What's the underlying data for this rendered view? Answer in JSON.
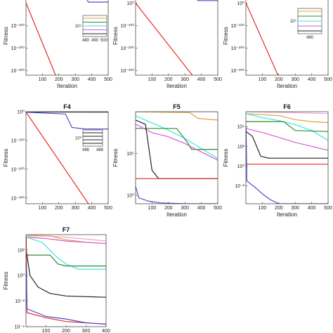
{
  "colors": {
    "red": "#e8282b",
    "blue": "#4b4fc4",
    "black": "#222222",
    "green": "#2e8b2e",
    "cyan": "#3ce6e6",
    "magenta": "#d65ad6",
    "orange": "#e0a040",
    "pink": "#e8a8d0"
  },
  "chart_data": [
    {
      "id": "top-left",
      "type": "line",
      "title": "",
      "xlabel": "Iteration",
      "ylabel": "Fitness",
      "yscale": "log",
      "xlim": [
        0,
        500
      ],
      "ylim_exp": [
        -320,
        30
      ],
      "xticks": [
        "100",
        "200",
        "300",
        "400",
        "500"
      ],
      "yticks": [
        {
          "exp": -100,
          "label": "10⁻¹⁰⁰"
        },
        {
          "exp": -200,
          "label": "10⁻²⁰⁰"
        },
        {
          "exp": -300,
          "label": "10⁻³⁰⁰"
        }
      ],
      "series": [
        {
          "color": "red",
          "points": [
            [
              1,
              0
            ],
            [
              180,
              -320
            ]
          ]
        },
        {
          "color": "blue",
          "points": [
            [
              1,
              30
            ],
            [
              360,
              28
            ],
            [
              380,
              5
            ],
            [
              500,
              5
            ]
          ]
        }
      ],
      "inset": {
        "xticks": [
          "480",
          "490",
          "500"
        ],
        "ylabel": "10⁵"
      }
    },
    {
      "id": "top-middle",
      "type": "line",
      "title": "",
      "xlabel": "Iteration",
      "ylabel": "Fitness",
      "yscale": "log",
      "xlim": [
        0,
        500
      ],
      "ylim_exp": [
        -320,
        30
      ],
      "xticks": [
        "100",
        "200",
        "300",
        "400",
        "500"
      ],
      "yticks": [
        {
          "exp": 0,
          "label": "10⁰"
        },
        {
          "exp": -100,
          "label": "10⁻¹⁰⁰"
        },
        {
          "exp": -200,
          "label": "10⁻²⁰⁰"
        },
        {
          "exp": -300,
          "label": "10⁻³⁰⁰"
        }
      ],
      "series": [
        {
          "color": "red",
          "points": [
            [
              1,
              0
            ],
            [
              345,
              -320
            ]
          ]
        },
        {
          "color": "blue",
          "points": [
            [
              1,
              30
            ],
            [
              350,
              28
            ],
            [
              380,
              12
            ],
            [
              500,
              12
            ]
          ]
        }
      ]
    },
    {
      "id": "top-right",
      "type": "line",
      "title": "",
      "xlabel": "Iteration",
      "ylabel": "Fitness",
      "yscale": "log",
      "xlim": [
        0,
        500
      ],
      "ylim_exp": [
        -320,
        30
      ],
      "xticks": [
        "100",
        "200",
        "300",
        "400",
        "500"
      ],
      "yticks": [
        {
          "exp": 0,
          "label": "10⁰"
        },
        {
          "exp": -100,
          "label": "10⁻¹⁰⁰"
        },
        {
          "exp": -200,
          "label": "10⁻²⁰⁰"
        },
        {
          "exp": -300,
          "label": "10⁻³⁰⁰"
        }
      ],
      "series": [
        {
          "color": "red",
          "points": [
            [
              1,
              0
            ],
            [
              195,
              -320
            ]
          ]
        }
      ],
      "inset": {
        "xticks": [
          "480"
        ],
        "ylabel": "10⁵"
      }
    },
    {
      "id": "F4",
      "type": "line",
      "title": "F4",
      "xlabel": "",
      "ylabel": "Fitness",
      "yscale": "log",
      "xlim": [
        0,
        500
      ],
      "ylim_exp": [
        -320,
        0
      ],
      "xticks": [
        "100",
        "200",
        "300",
        "400",
        "500"
      ],
      "yticks": [
        {
          "exp": 0,
          "label": "10⁰"
        },
        {
          "exp": -100,
          "label": "10⁻¹⁰⁰"
        },
        {
          "exp": -200,
          "label": "10⁻²⁰⁰"
        },
        {
          "exp": -300,
          "label": "10⁻³⁰⁰"
        }
      ],
      "series": [
        {
          "color": "orange",
          "points": [
            [
              1,
              -0.5
            ],
            [
              500,
              -0.5
            ]
          ]
        },
        {
          "color": "black",
          "points": [
            [
              1,
              -1
            ],
            [
              500,
              -1.2
            ]
          ]
        },
        {
          "color": "blue",
          "points": [
            [
              1,
              -2
            ],
            [
              240,
              -8
            ],
            [
              280,
              -55
            ],
            [
              360,
              -60
            ],
            [
              500,
              -60
            ]
          ]
        },
        {
          "color": "red",
          "points": [
            [
              1,
              -2
            ],
            [
              380,
              -320
            ]
          ]
        }
      ],
      "inset": {
        "xticks": [
          "486",
          "488"
        ],
        "ylabel": "10⁰"
      }
    },
    {
      "id": "F5",
      "type": "line",
      "title": "F5",
      "xlabel": "Iteration",
      "ylabel": "Fitness",
      "yscale": "log",
      "xlim": [
        0,
        500
      ],
      "ylim_exp": [
        -1,
        10
      ],
      "xticks": [
        "100",
        "200",
        "300",
        "400",
        "500"
      ],
      "yticks": [
        {
          "exp": 5,
          "label": "10⁵"
        },
        {
          "exp": 0,
          "label": "10⁰"
        }
      ],
      "series": [
        {
          "color": "pink",
          "points": [
            [
              1,
              10
            ],
            [
              500,
              10
            ]
          ]
        },
        {
          "color": "orange",
          "points": [
            [
              1,
              10
            ],
            [
              330,
              9.9
            ],
            [
              380,
              9.2
            ],
            [
              500,
              9
            ]
          ]
        },
        {
          "color": "cyan",
          "points": [
            [
              1,
              9.5
            ],
            [
              60,
              9
            ],
            [
              120,
              8.5
            ],
            [
              200,
              7.8
            ],
            [
              300,
              6.8
            ],
            [
              400,
              5.6
            ],
            [
              500,
              4.4
            ]
          ]
        },
        {
          "color": "green",
          "points": [
            [
              1,
              8
            ],
            [
              250,
              8
            ],
            [
              320,
              6.2
            ],
            [
              340,
              5.5
            ],
            [
              500,
              5.5
            ]
          ]
        },
        {
          "color": "magenta",
          "points": [
            [
              1,
              8.5
            ],
            [
              100,
              7.5
            ],
            [
              200,
              7
            ],
            [
              300,
              6.2
            ],
            [
              400,
              5.2
            ],
            [
              500,
              4.2
            ]
          ]
        },
        {
          "color": "black",
          "points": [
            [
              1,
              9
            ],
            [
              60,
              8.5
            ],
            [
              100,
              3
            ],
            [
              140,
              2
            ],
            [
              500,
              2
            ]
          ]
        },
        {
          "color": "red",
          "points": [
            [
              1,
              2
            ],
            [
              500,
              2
            ]
          ]
        },
        {
          "color": "blue",
          "points": [
            [
              1,
              1
            ],
            [
              20,
              -0.3
            ],
            [
              80,
              -0.7
            ],
            [
              150,
              -0.9
            ],
            [
              300,
              -1
            ],
            [
              500,
              -1
            ]
          ]
        }
      ]
    },
    {
      "id": "F6",
      "type": "line",
      "title": "F6",
      "xlabel": "Iteration",
      "ylabel": "Fitness",
      "yscale": "log",
      "xlim": [
        0,
        500
      ],
      "ylim_exp": [
        -3.8,
        5.5
      ],
      "xticks": [
        "100",
        "200",
        "300",
        "400",
        "500"
      ],
      "yticks": [
        {
          "exp": 4,
          "label": "10⁴"
        },
        {
          "exp": 2,
          "label": "10²"
        },
        {
          "exp": 0,
          "label": "10⁰"
        },
        {
          "exp": -2,
          "label": "10⁻²"
        }
      ],
      "series": [
        {
          "color": "pink",
          "points": [
            [
              1,
              5.5
            ],
            [
              300,
              5.4
            ],
            [
              500,
              5.3
            ]
          ]
        },
        {
          "color": "orange",
          "points": [
            [
              1,
              5.3
            ],
            [
              200,
              5.1
            ],
            [
              300,
              4.7
            ],
            [
              400,
              4.5
            ],
            [
              500,
              4.4
            ]
          ]
        },
        {
          "color": "cyan",
          "points": [
            [
              1,
              5.3
            ],
            [
              100,
              4.9
            ],
            [
              200,
              4.6
            ],
            [
              300,
              4.2
            ],
            [
              400,
              3.6
            ],
            [
              500,
              2.6
            ]
          ]
        },
        {
          "color": "green",
          "points": [
            [
              1,
              4.5
            ],
            [
              230,
              4.5
            ],
            [
              300,
              3.6
            ],
            [
              500,
              3.5
            ]
          ]
        },
        {
          "color": "magenta",
          "points": [
            [
              1,
              3.8
            ],
            [
              100,
              3.4
            ],
            [
              200,
              2.9
            ],
            [
              300,
              2.4
            ],
            [
              400,
              2
            ],
            [
              500,
              1.6
            ]
          ]
        },
        {
          "color": "black",
          "points": [
            [
              1,
              3.5
            ],
            [
              40,
              3
            ],
            [
              90,
              1
            ],
            [
              140,
              0.8
            ],
            [
              500,
              0.8
            ]
          ]
        },
        {
          "color": "red",
          "points": [
            [
              1,
              0.2
            ],
            [
              500,
              0.2
            ]
          ]
        },
        {
          "color": "blue",
          "points": [
            [
              1,
              4
            ],
            [
              6,
              -1.5
            ],
            [
              60,
              -2.2
            ],
            [
              100,
              -2.8
            ],
            [
              150,
              -3.4
            ],
            [
              200,
              -3.8
            ],
            [
              500,
              -3.8
            ]
          ]
        }
      ]
    },
    {
      "id": "F7",
      "type": "line",
      "title": "F7",
      "xlabel": "",
      "ylabel": "Fitness",
      "yscale": "log",
      "xlim": [
        0,
        400
      ],
      "ylim_exp": [
        -4,
        3.2
      ],
      "xticks": [
        "100",
        "200",
        "300",
        "400"
      ],
      "yticks": [
        {
          "exp": 2,
          "label": "10²"
        },
        {
          "exp": 0,
          "label": "10⁰"
        },
        {
          "exp": -2,
          "label": "10⁻²"
        },
        {
          "exp": -4,
          "label": "10⁻⁴"
        }
      ],
      "series": [
        {
          "color": "pink",
          "points": [
            [
              1,
              3.2
            ],
            [
              200,
              3
            ],
            [
              400,
              2.7
            ]
          ]
        },
        {
          "color": "orange",
          "points": [
            [
              1,
              3.1
            ],
            [
              120,
              3.1
            ],
            [
              200,
              2.8
            ],
            [
              300,
              2.6
            ],
            [
              400,
              2.5
            ]
          ]
        },
        {
          "color": "magenta",
          "points": [
            [
              1,
              3
            ],
            [
              100,
              2.9
            ],
            [
              200,
              2.7
            ],
            [
              300,
              2.6
            ],
            [
              400,
              2.5
            ]
          ]
        },
        {
          "color": "cyan",
          "points": [
            [
              1,
              3
            ],
            [
              80,
              2.6
            ],
            [
              150,
              1.5
            ],
            [
              200,
              0.9
            ],
            [
              260,
              0.5
            ],
            [
              400,
              0.5
            ]
          ]
        },
        {
          "color": "green",
          "points": [
            [
              1,
              1.6
            ],
            [
              120,
              1.6
            ],
            [
              160,
              0.9
            ],
            [
              200,
              0.75
            ],
            [
              400,
              0.75
            ]
          ]
        },
        {
          "color": "black",
          "points": [
            [
              1,
              2
            ],
            [
              20,
              0
            ],
            [
              60,
              -0.9
            ],
            [
              120,
              -1.4
            ],
            [
              200,
              -1.6
            ],
            [
              400,
              -1.7
            ]
          ]
        },
        {
          "color": "red",
          "points": [
            [
              1,
              3
            ],
            [
              5,
              -2.9
            ],
            [
              100,
              -3.3
            ],
            [
              200,
              -3.6
            ],
            [
              300,
              -3.7
            ],
            [
              400,
              -3.8
            ]
          ]
        },
        {
          "color": "blue",
          "points": [
            [
              1,
              1
            ],
            [
              5,
              -2.6
            ],
            [
              100,
              -3.2
            ],
            [
              200,
              -3.4
            ],
            [
              300,
              -3.7
            ],
            [
              400,
              -3.8
            ]
          ]
        }
      ]
    }
  ]
}
